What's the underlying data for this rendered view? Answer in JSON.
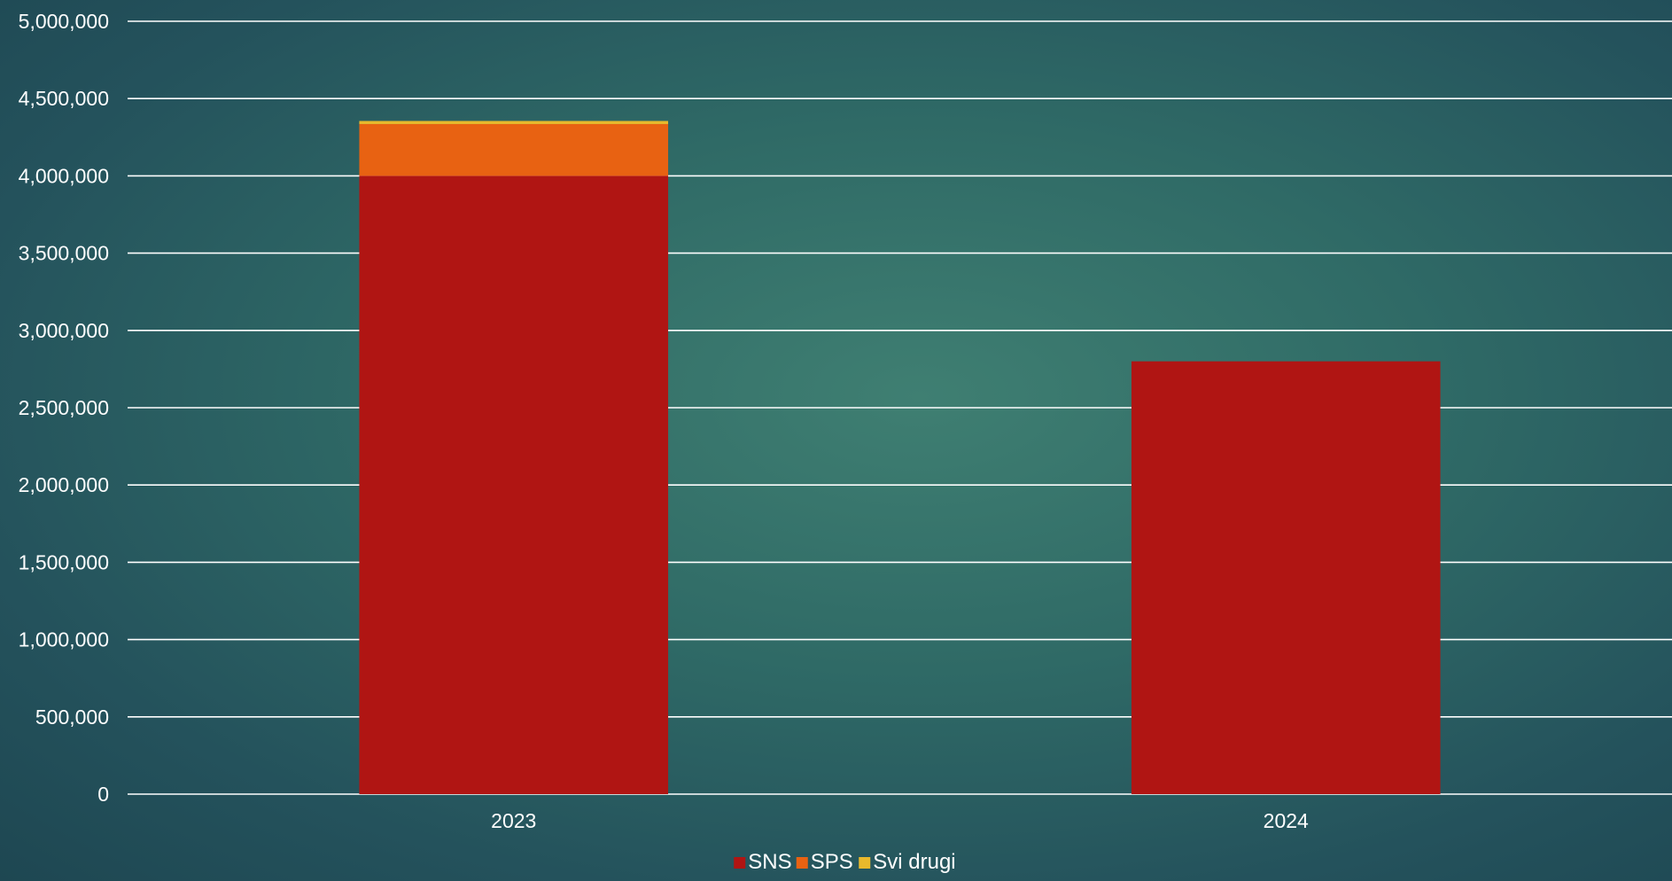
{
  "chart_data": {
    "type": "bar",
    "stacked": true,
    "categories": [
      "2023",
      "2024"
    ],
    "series": [
      {
        "name": "SNS",
        "values": [
          4000000,
          2800000
        ],
        "color": "#b01513"
      },
      {
        "name": "SPS",
        "values": [
          335000,
          0
        ],
        "color": "#e86212"
      },
      {
        "name": "Svi drugi",
        "values": [
          20000,
          0
        ],
        "color": "#e8b92c"
      }
    ],
    "ylim": [
      0,
      5000000
    ],
    "y_ticks": [
      0,
      500000,
      1000000,
      1500000,
      2000000,
      2500000,
      3000000,
      3500000,
      4000000,
      4500000,
      5000000
    ],
    "y_tick_labels": [
      "0",
      "500,000",
      "1,000,000",
      "1,500,000",
      "2,000,000",
      "2,500,000",
      "3,000,000",
      "3,500,000",
      "4,000,000",
      "4,500,000",
      "5,000,000"
    ],
    "grid": true,
    "legend_position": "bottom",
    "title": "",
    "xlabel": "",
    "ylabel": ""
  }
}
